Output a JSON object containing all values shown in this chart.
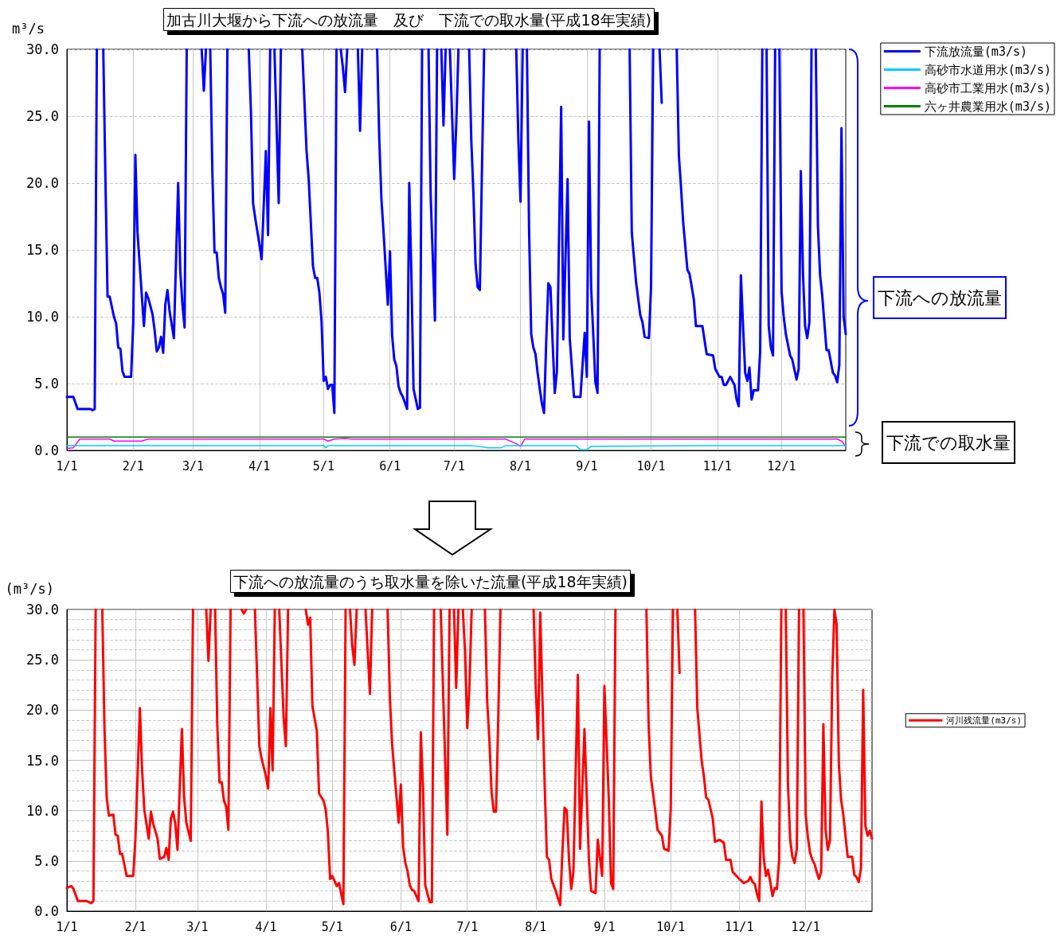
{
  "chart_data": [
    {
      "type": "line",
      "title": "加古川大堰から下流への放流量　及び　下流での取水量(平成18年実績)",
      "ylabel": "m³/s",
      "xlim": [
        "--01-01",
        "--12-31"
      ],
      "xticks": [
        {
          "value": "--01-01",
          "label": "1/1"
        },
        {
          "value": "--02-01",
          "label": "2/1"
        },
        {
          "value": "--03-01",
          "label": "3/1"
        },
        {
          "value": "--04-01",
          "label": "4/1"
        },
        {
          "value": "--05-01",
          "label": "5/1"
        },
        {
          "value": "--06-01",
          "label": "6/1"
        },
        {
          "value": "--07-01",
          "label": "7/1"
        },
        {
          "value": "--08-01",
          "label": "8/1"
        },
        {
          "value": "--09-01",
          "label": "9/1"
        },
        {
          "value": "--10-01",
          "label": "10/1"
        },
        {
          "value": "--11-01",
          "label": "11/1"
        },
        {
          "value": "--12-01",
          "label": "12/1"
        }
      ],
      "ylim": [
        0,
        30
      ],
      "yticks": [
        {
          "value": 0,
          "label": "0.0"
        },
        {
          "value": 5,
          "label": "5.0"
        },
        {
          "value": 10,
          "label": "10.0"
        },
        {
          "value": 15,
          "label": "15.0"
        },
        {
          "value": 20,
          "label": "20.0"
        },
        {
          "value": 25,
          "label": "25.0"
        },
        {
          "value": 30,
          "label": "30.0"
        }
      ],
      "grid": true,
      "legend": "top right",
      "marker": "none",
      "line_style": "solid",
      "annotations": [
        "下流への放流量",
        "下流での取水量"
      ],
      "series": [
        {
          "name": "下流放流量(m3/s)",
          "color": "#0000ff",
          "x": [
            "--01-01",
            "--01-04",
            "--01-06",
            "--01-12",
            "--01-13",
            "--01-14",
            "--01-15",
            "--01-16",
            "--01-18",
            "--01-19",
            "--01-20",
            "--01-21",
            "--01-23",
            "--01-24",
            "--01-25",
            "--01-26",
            "--01-27",
            "--01-28",
            "--01-31",
            "--02-01",
            "--02-02",
            "--02-03",
            "--02-06",
            "--02-07",
            "--02-08",
            "--02-10",
            "--02-11",
            "--02-12",
            "--02-13",
            "--02-14",
            "--02-15",
            "--02-16",
            "--02-17",
            "--02-18",
            "--02-20",
            "--02-22",
            "--02-23",
            "--02-24",
            "--02-25",
            "--02-26",
            "--03-02",
            "--03-05",
            "--03-06",
            "--03-07",
            "--03-08",
            "--03-09",
            "--03-10",
            "--03-11",
            "--03-12",
            "--03-13",
            "--03-14",
            "--03-15",
            "--03-16",
            "--03-17",
            "--03-22",
            "--03-27",
            "--03-28",
            "--03-29",
            "--03-30",
            "--04-01",
            "--04-02",
            "--04-04",
            "--04-05",
            "--04-06",
            "--04-07",
            "--04-08",
            "--04-10",
            "--04-11",
            "--04-16",
            "--04-21",
            "--04-23",
            "--04-24",
            "--04-26",
            "--04-27",
            "--04-28",
            "--04-29",
            "--04-30",
            "--05-01",
            "--05-02",
            "--05-03",
            "--05-04",
            "--05-05",
            "--05-06",
            "--05-07",
            "--05-08",
            "--05-09",
            "--05-10",
            "--05-11",
            "--05-12",
            "--05-14",
            "--05-17",
            "--05-18",
            "--05-19",
            "--05-21",
            "--05-26",
            "--05-27",
            "--05-28",
            "--05-29",
            "--05-30",
            "--05-31",
            "--06-01",
            "--06-02",
            "--06-03",
            "--06-04",
            "--06-05",
            "--06-06",
            "--06-07",
            "--06-09",
            "--06-10",
            "--06-11",
            "--06-12",
            "--06-14",
            "--06-15",
            "--06-16",
            "--06-17",
            "--06-19",
            "--06-20",
            "--06-22",
            "--06-23",
            "--06-24",
            "--06-25",
            "--06-26",
            "--06-27",
            "--06-28",
            "--06-29",
            "--07-01",
            "--07-02",
            "--07-03",
            "--07-05",
            "--07-08",
            "--07-09",
            "--07-10",
            "--07-11",
            "--07-12",
            "--07-13",
            "--07-14",
            "--07-15",
            "--07-20",
            "--07-30",
            "--07-31",
            "--08-01",
            "--08-02",
            "--08-03",
            "--08-04",
            "--08-05",
            "--08-06",
            "--08-07",
            "--08-08",
            "--08-09",
            "--08-10",
            "--08-11",
            "--08-12",
            "--08-13",
            "--08-14",
            "--08-15",
            "--08-16",
            "--08-17",
            "--08-18",
            "--08-20",
            "--08-21",
            "--08-23",
            "--08-24",
            "--08-26",
            "--08-29",
            "--08-31",
            "--09-01",
            "--09-02",
            "--09-03",
            "--09-05",
            "--09-06",
            "--09-07",
            "--09-13",
            "--09-21",
            "--09-22",
            "--09-24",
            "--09-26",
            "--09-27",
            "--09-28",
            "--09-30",
            "--10-01",
            "--10-02",
            "--10-04",
            "--10-05",
            "--10-06",
            "--10-07",
            "--10-13",
            "--10-14",
            "--10-15",
            "--10-16",
            "--10-18",
            "--10-19",
            "--10-21",
            "--10-22",
            "--10-25",
            "--10-27",
            "--10-30",
            "--10-31",
            "--11-02",
            "--11-03",
            "--11-04",
            "--11-05",
            "--11-07",
            "--11-09",
            "--11-10",
            "--11-11",
            "--11-12",
            "--11-13",
            "--11-14",
            "--11-15",
            "--11-16",
            "--11-17",
            "--11-18",
            "--11-20",
            "--11-21",
            "--11-22",
            "--11-23",
            "--11-24",
            "--11-25",
            "--11-26",
            "--11-27",
            "--11-28",
            "--11-29",
            "--11-30",
            "--12-01",
            "--12-02",
            "--12-03",
            "--12-05",
            "--12-06",
            "--12-08",
            "--12-09",
            "--12-10",
            "--12-11",
            "--12-12",
            "--12-13",
            "--12-14",
            "--12-15",
            "--12-16",
            "--12-17",
            "--12-18",
            "--12-19",
            "--12-20",
            "--12-22",
            "--12-23",
            "--12-25",
            "--12-26",
            "--12-27",
            "--12-28",
            "--12-29",
            "--12-30",
            "--12-31"
          ],
          "values": [
            4.0,
            4.0,
            3.1,
            3.1,
            3.0,
            3.1,
            30,
            null,
            30,
            20.4,
            11.5,
            11.5,
            10.0,
            9.5,
            7.7,
            7.6,
            5.9,
            5.5,
            5.5,
            9.5,
            22.1,
            16.3,
            9.3,
            11.8,
            11.4,
            10.2,
            9.0,
            7.4,
            7.7,
            8.5,
            7.3,
            10.9,
            12.0,
            10.4,
            8.4,
            20.0,
            13.4,
            10.9,
            9.2,
            30,
            null,
            30,
            26.9,
            30,
            null,
            30,
            20.7,
            14.8,
            14.8,
            12.9,
            12.2,
            11.7,
            10.3,
            30,
            null,
            30,
            25.4,
            18.5,
            17.4,
            15.4,
            14.3,
            22.4,
            16.1,
            30,
            null,
            30,
            18.5,
            30,
            null,
            30,
            22.4,
            20.3,
            13.8,
            12.9,
            12.9,
            11.8,
            9.7,
            5.2,
            5.5,
            4.6,
            4.9,
            4.9,
            2.8,
            30,
            null,
            30,
            28.6,
            26.8,
            30,
            null,
            30,
            23.9,
            30,
            null,
            30,
            23.2,
            18.8,
            16.3,
            13.6,
            10.9,
            14.9,
            8.6,
            6.8,
            6.3,
            4.8,
            4.3,
            4.0,
            3.1,
            20.0,
            13.1,
            4.6,
            3.1,
            3.2,
            30,
            null,
            30,
            19.1,
            9.7,
            30,
            null,
            30,
            24.3,
            30,
            null,
            30,
            20.3,
            24.5,
            30,
            null,
            30,
            23.2,
            19.2,
            13.9,
            12.2,
            12.0,
            21.2,
            30,
            null,
            30,
            23.2,
            18.6,
            30,
            null,
            30,
            16.5,
            8.7,
            7.7,
            7.2,
            5.8,
            4.6,
            3.5,
            2.8,
            8.1,
            12.5,
            12.2,
            8.1,
            4.3,
            5.9,
            25.7,
            8.3,
            20.3,
            8.4,
            4.0,
            4.0,
            8.8,
            5.5,
            24.6,
            12.2,
            5.1,
            4.3,
            30,
            null,
            30,
            16.3,
            12.6,
            10.1,
            9.6,
            8.5,
            8.4,
            12.2,
            30,
            null,
            30,
            26.0,
            null,
            30,
            22.1,
            19.7,
            17.1,
            13.5,
            13.2,
            11.3,
            9.3,
            9.3,
            7.2,
            7.1,
            6.1,
            5.5,
            5.5,
            4.9,
            4.9,
            5.5,
            4.9,
            3.8,
            3.3,
            13.1,
            9.3,
            5.8,
            5.2,
            6.2,
            3.8,
            4.5,
            4.5,
            7.4,
            30,
            null,
            30,
            9.3,
            7.7,
            7.1,
            30,
            null,
            30,
            11.9,
            10.0,
            8.7,
            7.1,
            6.8,
            5.3,
            6.1,
            20.9,
            13.3,
            9.3,
            8.4,
            9.6,
            30,
            null,
            30,
            16.8,
            13.1,
            11.6,
            7.5,
            7.5,
            5.8,
            5.6,
            5.1,
            6.4,
            24.1,
            10.0,
            8.7
          ]
        },
        {
          "name": "高砂市水道用水(m3/s)",
          "color": "#00ccff",
          "x": [
            "--01-01",
            "--01-11",
            "--03-02",
            "--05-01",
            "--05-02",
            "--05-03",
            "--07-10",
            "--07-17",
            "--07-23",
            "--07-25",
            "--08-27",
            "--08-29",
            "--09-01",
            "--09-03",
            "--10-28",
            "--12-31"
          ],
          "values": [
            0.35,
            0.35,
            0.35,
            0.35,
            0.2,
            0.35,
            0.35,
            0.2,
            0.2,
            0.35,
            0.35,
            0.05,
            0.05,
            0.3,
            0.35,
            0.35
          ]
        },
        {
          "name": "高砂市工業用水(m3/s)",
          "color": "#ff00ff",
          "x": [
            "--01-01",
            "--01-04",
            "--01-07",
            "--01-21",
            "--01-23",
            "--02-05",
            "--02-08",
            "--05-01",
            "--05-03",
            "--05-06",
            "--05-11",
            "--05-14",
            "--07-25",
            "--07-30",
            "--08-01",
            "--08-03",
            "--12-27",
            "--12-29",
            "--12-31"
          ],
          "values": [
            0.15,
            0.2,
            0.85,
            0.85,
            0.7,
            0.7,
            0.85,
            0.85,
            0.7,
            0.85,
            0.9,
            0.85,
            0.85,
            0.5,
            0.3,
            0.85,
            0.85,
            0.7,
            0.3
          ]
        },
        {
          "name": "六ヶ井農業用水(m3/s)",
          "color": "#008000",
          "x": [
            "--01-01",
            "--12-31"
          ],
          "values": [
            1.0,
            1.0
          ]
        }
      ]
    },
    {
      "type": "line",
      "title": "下流への放流量のうち取水量を除いた流量(平成18年実績)",
      "ylabel": "(m³/s)",
      "xlim": [
        "--01-01",
        "--12-31"
      ],
      "xticks": [
        {
          "value": "--01-01",
          "label": "1/1"
        },
        {
          "value": "--02-01",
          "label": "2/1"
        },
        {
          "value": "--03-01",
          "label": "3/1"
        },
        {
          "value": "--04-01",
          "label": "4/1"
        },
        {
          "value": "--05-01",
          "label": "5/1"
        },
        {
          "value": "--06-01",
          "label": "6/1"
        },
        {
          "value": "--07-01",
          "label": "7/1"
        },
        {
          "value": "--08-01",
          "label": "8/1"
        },
        {
          "value": "--09-01",
          "label": "9/1"
        },
        {
          "value": "--10-01",
          "label": "10/1"
        },
        {
          "value": "--11-01",
          "label": "11/1"
        },
        {
          "value": "--12-01",
          "label": "12/1"
        }
      ],
      "ylim": [
        0,
        30
      ],
      "yticks": [
        {
          "value": 0,
          "label": "0.0"
        },
        {
          "value": 5,
          "label": "5.0"
        },
        {
          "value": 10,
          "label": "10.0"
        },
        {
          "value": 15,
          "label": "15.0"
        },
        {
          "value": 20,
          "label": "20.0"
        },
        {
          "value": 25,
          "label": "25.0"
        },
        {
          "value": 30,
          "label": "30.0"
        }
      ],
      "grid": true,
      "legend": "right",
      "marker": "none",
      "line_style": "solid",
      "series": [
        {
          "name": "河川残流量(m3/s)",
          "color": "#ff0000",
          "x": [
            "--01-01",
            "--01-03",
            "--01-04",
            "--01-06",
            "--01-10",
            "--01-12",
            "--01-13",
            "--01-14",
            "--01-15",
            "--01-17",
            "--01-18",
            "--01-19",
            "--01-20",
            "--01-22",
            "--01-23",
            "--01-24",
            "--01-25",
            "--01-26",
            "--01-28",
            "--01-31",
            "--02-01",
            "--02-03",
            "--02-04",
            "--02-05",
            "--02-07",
            "--02-08",
            "--02-09",
            "--02-11",
            "--02-12",
            "--02-14",
            "--02-15",
            "--02-16",
            "--02-17",
            "--02-18",
            "--02-19",
            "--02-20",
            "--02-22",
            "--02-23",
            "--02-24",
            "--02-26",
            "--02-27",
            "--03-02",
            "--03-05",
            "--03-06",
            "--03-07",
            "--03-08",
            "--03-09",
            "--03-10",
            "--03-11",
            "--03-12",
            "--03-13",
            "--03-14",
            "--03-15",
            "--03-16",
            "--03-19",
            "--03-21",
            "--03-22",
            "--03-23",
            "--03-24",
            "--03-27",
            "--03-28",
            "--03-29",
            "--03-30",
            "--04-01",
            "--04-02",
            "--04-03",
            "--04-04",
            "--04-05",
            "--04-06",
            "--04-07",
            "--04-09",
            "--04-10",
            "--04-11",
            "--04-15",
            "--04-19",
            "--04-20",
            "--04-21",
            "--04-22",
            "--04-24",
            "--04-25",
            "--04-27",
            "--04-28",
            "--04-29",
            "--04-30",
            "--05-01",
            "--05-03",
            "--05-04",
            "--05-06",
            "--05-07",
            "--05-08",
            "--05-09",
            "--05-10",
            "--05-11",
            "--05-12",
            "--05-14",
            "--05-16",
            "--05-18",
            "--05-19",
            "--05-21",
            "--05-26",
            "--05-27",
            "--05-28",
            "--05-29",
            "--05-31",
            "--06-01",
            "--06-02",
            "--06-03",
            "--06-04",
            "--06-05",
            "--06-06",
            "--06-07",
            "--06-09",
            "--06-10",
            "--06-11",
            "--06-12",
            "--06-14",
            "--06-15",
            "--06-16",
            "--06-17",
            "--06-19",
            "--06-22",
            "--06-23",
            "--06-24",
            "--06-25",
            "--06-26",
            "--06-27",
            "--06-28",
            "--06-29",
            "--06-30",
            "--07-01",
            "--07-02",
            "--07-03",
            "--07-05",
            "--07-09",
            "--07-10",
            "--07-11",
            "--07-12",
            "--07-13",
            "--07-14",
            "--07-15",
            "--07-16",
            "--07-20",
            "--07-31",
            "--08-01",
            "--08-02",
            "--08-03",
            "--08-05",
            "--08-06",
            "--08-07",
            "--08-08",
            "--08-10",
            "--08-12",
            "--08-13",
            "--08-14",
            "--08-15",
            "--08-16",
            "--08-17",
            "--08-18",
            "--08-20",
            "--08-21",
            "--08-23",
            "--08-25",
            "--08-26",
            "--08-28",
            "--08-29",
            "--08-31",
            "--09-01",
            "--09-03",
            "--09-04",
            "--09-05",
            "--09-06",
            "--09-13",
            "--09-20",
            "--09-21",
            "--09-22",
            "--09-24",
            "--09-25",
            "--09-27",
            "--09-28",
            "--09-30",
            "--10-01",
            "--10-02",
            "--10-03",
            "--10-04",
            "--10-05",
            "--10-06",
            "--10-12",
            "--10-13",
            "--10-15",
            "--10-16",
            "--10-17",
            "--10-18",
            "--10-20",
            "--10-21",
            "--10-23",
            "--10-25",
            "--10-26",
            "--10-28",
            "--10-29",
            "--11-01",
            "--11-03",
            "--11-05",
            "--11-06",
            "--11-07",
            "--11-08",
            "--11-09",
            "--11-10",
            "--11-11",
            "--11-12",
            "--11-13",
            "--11-14",
            "--11-15",
            "--11-16",
            "--11-17",
            "--11-18",
            "--11-19",
            "--11-20",
            "--11-21",
            "--11-22",
            "--11-23",
            "--11-24",
            "--11-25",
            "--11-26",
            "--11-27",
            "--11-28",
            "--11-29",
            "--11-30",
            "--12-01",
            "--12-02",
            "--12-03",
            "--12-04",
            "--12-05",
            "--12-06",
            "--12-07",
            "--12-08",
            "--12-09",
            "--12-10",
            "--12-11",
            "--12-12",
            "--12-13",
            "--12-14",
            "--12-15",
            "--12-16",
            "--12-17",
            "--12-18",
            "--12-20",
            "--12-22",
            "--12-23",
            "--12-24",
            "--12-25",
            "--12-26",
            "--12-27",
            "--12-28",
            "--12-29",
            "--12-30",
            "--12-31"
          ],
          "values": [
            2.3,
            2.5,
            2.2,
            1.0,
            1.0,
            0.8,
            1.0,
            30,
            null,
            30,
            18.2,
            11.3,
            9.5,
            9.6,
            7.6,
            7.5,
            5.7,
            5.7,
            3.5,
            3.5,
            7.3,
            20.2,
            14.0,
            10.1,
            7.2,
            9.9,
            8.7,
            7.2,
            5.2,
            5.4,
            6.3,
            5.1,
            9.2,
            9.9,
            8.7,
            6.1,
            18.1,
            11.3,
            8.8,
            7.0,
            30,
            null,
            30,
            24.9,
            30,
            null,
            30,
            18.5,
            12.8,
            12.8,
            11.0,
            10.4,
            8.1,
            30,
            null,
            30,
            29.6,
            30,
            null,
            30,
            23.4,
            16.4,
            15.2,
            13.4,
            12.2,
            20.2,
            14.0,
            30,
            null,
            30,
            19.2,
            16.4,
            30,
            null,
            30,
            28.5,
            29.2,
            20.4,
            17.9,
            11.7,
            11.0,
            10.1,
            7.9,
            3.2,
            3.5,
            2.5,
            2.8,
            0.7,
            30,
            null,
            30,
            26.4,
            24.5,
            30,
            null,
            30,
            21.6,
            30,
            null,
            30,
            21.3,
            16.7,
            14.0,
            8.8,
            12.6,
            6.4,
            4.8,
            4.0,
            2.6,
            2.1,
            2.0,
            1.0,
            17.8,
            12.2,
            2.6,
            0.9,
            0.9,
            30,
            null,
            30,
            7.6,
            30,
            null,
            30,
            22.2,
            30,
            null,
            30,
            25.8,
            18.2,
            22.5,
            30,
            null,
            30,
            20.9,
            17.1,
            11.8,
            9.9,
            9.9,
            19.0,
            30,
            null,
            30,
            22.0,
            17.1,
            29.7,
            12.6,
            5.4,
            5.1,
            3.2,
            2.0,
            0.6,
            5.8,
            10.3,
            10.0,
            5.1,
            2.2,
            3.9,
            23.5,
            6.2,
            18.1,
            5.1,
            2.0,
            1.8,
            7.1,
            3.5,
            22.4,
            11.1,
            2.8,
            2.2,
            30,
            null,
            30,
            18.6,
            13.4,
            10.0,
            8.1,
            7.5,
            6.2,
            6.0,
            10.2,
            30,
            null,
            30,
            23.7,
            null,
            30,
            20.2,
            14.9,
            13.4,
            11.3,
            11.1,
            9.2,
            6.9,
            7.1,
            6.8,
            5.1,
            5.1,
            3.9,
            3.2,
            2.8,
            3.0,
            3.4,
            2.9,
            2.7,
            1.7,
            1.0,
            10.9,
            5.4,
            3.5,
            4.1,
            2.9,
            1.5,
            2.3,
            2.2,
            5.1,
            30,
            null,
            30,
            12.6,
            7.1,
            5.4,
            4.8,
            6.2,
            30,
            null,
            30,
            9.6,
            7.3,
            5.8,
            5.1,
            4.7,
            3.9,
            3.2,
            3.9,
            18.6,
            8.1,
            6.1,
            7.1,
            23.2,
            30,
            28.5,
            14.7,
            11.1,
            9.6,
            5.4,
            5.4,
            3.6,
            3.4,
            2.9,
            4.3,
            22.0,
            8.5,
            7.5,
            8.0,
            7.2
          ]
        }
      ]
    }
  ]
}
